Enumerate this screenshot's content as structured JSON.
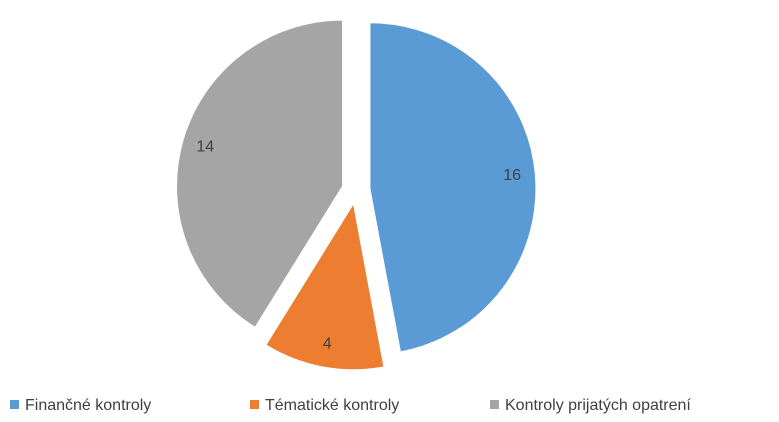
{
  "chart_data": {
    "type": "pie",
    "categories": [
      "Finančné kontroly",
      "Tématické kontroly",
      "Kontroly prijatých opatrení"
    ],
    "values": [
      16,
      4,
      14
    ],
    "colors": [
      "#5b9bd5",
      "#ed7d31",
      "#a5a5a5"
    ],
    "legend": "bottom"
  }
}
